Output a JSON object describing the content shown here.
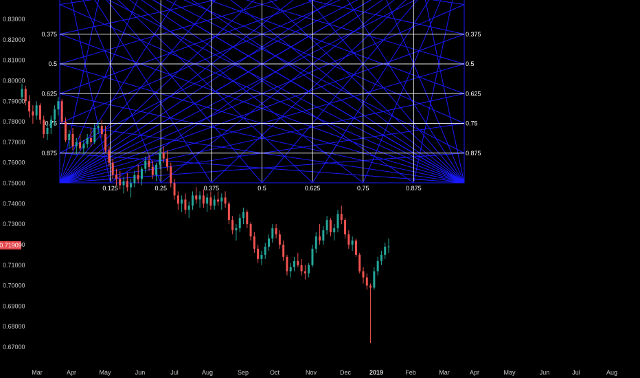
{
  "chart_data": {
    "type": "candlestick",
    "ylim": [
      0.665,
      0.835
    ],
    "y_ticks": [
      "0.67000",
      "0.68000",
      "0.69000",
      "0.70000",
      "0.71000",
      "0.72000",
      "0.73000",
      "0.74000",
      "0.75000",
      "0.76000",
      "0.77000",
      "0.78000",
      "0.79000",
      "0.80000",
      "0.81000",
      "0.82000",
      "0.83000"
    ],
    "x_ticks": [
      {
        "label": "Mar",
        "bold": false
      },
      {
        "label": "Apr",
        "bold": false
      },
      {
        "label": "May",
        "bold": false
      },
      {
        "label": "Jun",
        "bold": false
      },
      {
        "label": "Jul",
        "bold": false
      },
      {
        "label": "Aug",
        "bold": false
      },
      {
        "label": "Sep",
        "bold": false
      },
      {
        "label": "Oct",
        "bold": false
      },
      {
        "label": "Nov",
        "bold": false
      },
      {
        "label": "Dec",
        "bold": false
      },
      {
        "label": "2019",
        "bold": true
      },
      {
        "label": "Feb",
        "bold": false
      },
      {
        "label": "Mar",
        "bold": false
      },
      {
        "label": "Apr",
        "bold": false
      },
      {
        "label": "May",
        "bold": false
      },
      {
        "label": "Jun",
        "bold": false
      },
      {
        "label": "Jul",
        "bold": false
      },
      {
        "label": "Aug",
        "bold": false
      }
    ],
    "current_price": "0.71909",
    "gann_box": {
      "left_labels": [
        "0.375",
        "0.5",
        "0.625",
        "0.75",
        "0.875"
      ],
      "right_labels": [
        "0.375",
        "0.5",
        "0.625",
        "0.75",
        "0.875"
      ],
      "bottom_labels": [
        "0.125",
        "0.25",
        "0.375",
        "0.5",
        "0.625",
        "0.75",
        "0.875"
      ]
    },
    "candles": [
      [
        0.792,
        0.7985,
        0.7895,
        0.796
      ],
      [
        0.796,
        0.7975,
        0.788,
        0.79
      ],
      [
        0.79,
        0.793,
        0.782,
        0.785
      ],
      [
        0.785,
        0.788,
        0.779,
        0.783
      ],
      [
        0.783,
        0.79,
        0.781,
        0.788
      ],
      [
        0.788,
        0.789,
        0.779,
        0.781
      ],
      [
        0.781,
        0.783,
        0.772,
        0.774
      ],
      [
        0.774,
        0.779,
        0.771,
        0.777
      ],
      [
        0.777,
        0.783,
        0.774,
        0.781
      ],
      [
        0.781,
        0.788,
        0.778,
        0.786
      ],
      [
        0.786,
        0.792,
        0.783,
        0.79
      ],
      [
        0.79,
        0.791,
        0.779,
        0.78
      ],
      [
        0.78,
        0.782,
        0.77,
        0.771
      ],
      [
        0.771,
        0.776,
        0.767,
        0.774
      ],
      [
        0.774,
        0.777,
        0.766,
        0.768
      ],
      [
        0.768,
        0.772,
        0.764,
        0.77
      ],
      [
        0.77,
        0.774,
        0.766,
        0.767
      ],
      [
        0.767,
        0.771,
        0.764,
        0.769
      ],
      [
        0.769,
        0.774,
        0.767,
        0.772
      ],
      [
        0.772,
        0.777,
        0.768,
        0.77
      ],
      [
        0.77,
        0.779,
        0.769,
        0.777
      ],
      [
        0.777,
        0.78,
        0.774,
        0.778
      ],
      [
        0.778,
        0.781,
        0.772,
        0.774
      ],
      [
        0.774,
        0.778,
        0.765,
        0.766
      ],
      [
        0.766,
        0.768,
        0.758,
        0.76
      ],
      [
        0.76,
        0.762,
        0.752,
        0.754
      ],
      [
        0.754,
        0.757,
        0.749,
        0.752
      ],
      [
        0.752,
        0.756,
        0.747,
        0.749
      ],
      [
        0.749,
        0.753,
        0.745,
        0.751
      ],
      [
        0.751,
        0.755,
        0.746,
        0.748
      ],
      [
        0.748,
        0.752,
        0.743,
        0.75
      ],
      [
        0.75,
        0.756,
        0.748,
        0.754
      ],
      [
        0.754,
        0.759,
        0.75,
        0.752
      ],
      [
        0.752,
        0.758,
        0.749,
        0.757
      ],
      [
        0.757,
        0.763,
        0.755,
        0.761
      ],
      [
        0.761,
        0.764,
        0.756,
        0.758
      ],
      [
        0.758,
        0.761,
        0.752,
        0.754
      ],
      [
        0.754,
        0.76,
        0.751,
        0.759
      ],
      [
        0.759,
        0.767,
        0.757,
        0.765
      ],
      [
        0.765,
        0.768,
        0.76,
        0.762
      ],
      [
        0.762,
        0.766,
        0.756,
        0.758
      ],
      [
        0.758,
        0.76,
        0.748,
        0.75
      ],
      [
        0.75,
        0.752,
        0.742,
        0.744
      ],
      [
        0.744,
        0.746,
        0.737,
        0.74
      ],
      [
        0.74,
        0.744,
        0.736,
        0.742
      ],
      [
        0.742,
        0.745,
        0.735,
        0.737
      ],
      [
        0.737,
        0.741,
        0.733,
        0.739
      ],
      [
        0.739,
        0.746,
        0.737,
        0.744
      ],
      [
        0.744,
        0.748,
        0.74,
        0.742
      ],
      [
        0.742,
        0.746,
        0.738,
        0.744
      ],
      [
        0.744,
        0.747,
        0.738,
        0.74
      ],
      [
        0.74,
        0.745,
        0.736,
        0.743
      ],
      [
        0.743,
        0.746,
        0.737,
        0.739
      ],
      [
        0.739,
        0.744,
        0.737,
        0.742
      ],
      [
        0.742,
        0.746,
        0.739,
        0.741
      ],
      [
        0.741,
        0.745,
        0.737,
        0.743
      ],
      [
        0.743,
        0.746,
        0.738,
        0.74
      ],
      [
        0.74,
        0.741,
        0.73,
        0.732
      ],
      [
        0.732,
        0.734,
        0.725,
        0.727
      ],
      [
        0.727,
        0.73,
        0.722,
        0.728
      ],
      [
        0.728,
        0.735,
        0.726,
        0.733
      ],
      [
        0.733,
        0.738,
        0.73,
        0.736
      ],
      [
        0.736,
        0.737,
        0.728,
        0.73
      ],
      [
        0.73,
        0.731,
        0.722,
        0.724
      ],
      [
        0.724,
        0.726,
        0.716,
        0.718
      ],
      [
        0.718,
        0.72,
        0.711,
        0.713
      ],
      [
        0.713,
        0.717,
        0.71,
        0.715
      ],
      [
        0.715,
        0.721,
        0.713,
        0.719
      ],
      [
        0.719,
        0.725,
        0.717,
        0.723
      ],
      [
        0.723,
        0.73,
        0.721,
        0.728
      ],
      [
        0.728,
        0.73,
        0.723,
        0.725
      ],
      [
        0.725,
        0.727,
        0.718,
        0.72
      ],
      [
        0.72,
        0.722,
        0.712,
        0.714
      ],
      [
        0.714,
        0.715,
        0.705,
        0.707
      ],
      [
        0.707,
        0.711,
        0.704,
        0.709
      ],
      [
        0.709,
        0.714,
        0.707,
        0.712
      ],
      [
        0.712,
        0.716,
        0.709,
        0.71
      ],
      [
        0.71,
        0.713,
        0.705,
        0.707
      ],
      [
        0.707,
        0.71,
        0.703,
        0.706
      ],
      [
        0.706,
        0.711,
        0.704,
        0.71
      ],
      [
        0.71,
        0.72,
        0.709,
        0.718
      ],
      [
        0.718,
        0.726,
        0.716,
        0.724
      ],
      [
        0.724,
        0.73,
        0.72,
        0.722
      ],
      [
        0.722,
        0.729,
        0.72,
        0.727
      ],
      [
        0.727,
        0.734,
        0.725,
        0.732
      ],
      [
        0.732,
        0.733,
        0.724,
        0.726
      ],
      [
        0.726,
        0.73,
        0.722,
        0.728
      ],
      [
        0.728,
        0.737,
        0.726,
        0.735
      ],
      [
        0.735,
        0.739,
        0.73,
        0.732
      ],
      [
        0.732,
        0.733,
        0.723,
        0.725
      ],
      [
        0.725,
        0.727,
        0.718,
        0.72
      ],
      [
        0.72,
        0.724,
        0.717,
        0.722
      ],
      [
        0.722,
        0.723,
        0.714,
        0.715
      ],
      [
        0.715,
        0.716,
        0.706,
        0.707
      ],
      [
        0.707,
        0.709,
        0.701,
        0.704
      ],
      [
        0.704,
        0.706,
        0.698,
        0.7
      ],
      [
        0.7,
        0.701,
        0.672,
        0.699
      ],
      [
        0.699,
        0.709,
        0.698,
        0.707
      ],
      [
        0.707,
        0.714,
        0.705,
        0.712
      ],
      [
        0.712,
        0.717,
        0.71,
        0.715
      ],
      [
        0.715,
        0.721,
        0.713,
        0.719
      ],
      [
        0.719,
        0.723,
        0.716,
        0.7191
      ]
    ]
  }
}
